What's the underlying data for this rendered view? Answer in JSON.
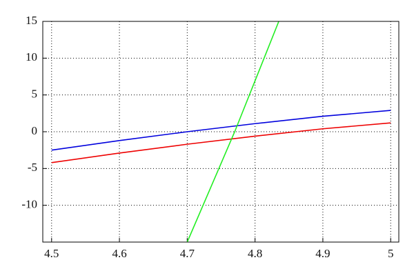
{
  "chart_data": {
    "type": "line",
    "series": [
      {
        "color": "#0000dd",
        "x": [
          4.5,
          4.6,
          4.7,
          4.8,
          4.9,
          5
        ],
        "values": [
          -2.5,
          -1.2,
          0,
          1.1,
          2.1,
          2.9
        ]
      },
      {
        "color": "#ee0000",
        "x": [
          4.5,
          4.6,
          4.7,
          4.8,
          4.9,
          5
        ],
        "values": [
          -4.2,
          -2.9,
          -1.7,
          -0.6,
          0.4,
          1.2
        ]
      },
      {
        "color": "#22ee22",
        "x": [
          4.7,
          4.77,
          4.835
        ],
        "values": [
          -15,
          0,
          15
        ]
      }
    ],
    "xlim": [
      4.487,
      5.012
    ],
    "ylim": [
      -15,
      15
    ],
    "xticks": [
      4.5,
      4.6,
      4.7,
      4.8,
      4.9,
      5
    ],
    "yticks": [
      -10,
      -5,
      0,
      5,
      10,
      15
    ],
    "grid": true
  }
}
